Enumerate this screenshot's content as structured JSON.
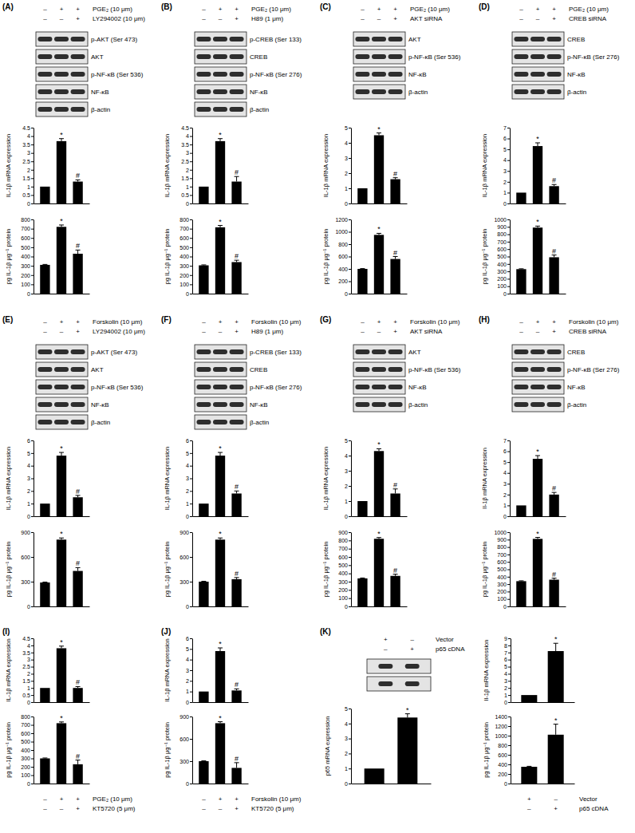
{
  "panels": [
    {
      "label": "(A)",
      "treatment_tables": [
        [
          {
            "label": "PGE₂ (10 μm)",
            "signs": [
              "–",
              "+",
              "+"
            ]
          },
          {
            "label": "LY294002 (10 μm)",
            "signs": [
              "–",
              "–",
              "+"
            ]
          }
        ]
      ],
      "blots": [
        "p-AKT (Ser 473)",
        "AKT",
        "p-NF-κB (Ser 536)",
        "NF-κB",
        "β-actin"
      ]
    },
    {
      "label": "(B)",
      "treatment_tables": [
        [
          {
            "label": "PGE₂ (10 μm)",
            "signs": [
              "–",
              "+",
              "+"
            ]
          },
          {
            "label": "H89 (1 μm)",
            "signs": [
              "–",
              "–",
              "+"
            ]
          }
        ]
      ],
      "blots": [
        "p-CREB (Ser 133)",
        "CREB",
        "p-NF-κB (Ser 276)",
        "NF-κB",
        "β-actin"
      ]
    },
    {
      "label": "(C)",
      "treatment_tables": [
        [
          {
            "label": "PGE₂ (10 μm)",
            "signs": [
              "–",
              "+",
              "+"
            ]
          },
          {
            "label": "AKT siRNA",
            "signs": [
              "–",
              "–",
              "+"
            ]
          }
        ]
      ],
      "blots": [
        "AKT",
        "p-NF-κB (Ser 536)",
        "NF-κB",
        "β-actin"
      ]
    },
    {
      "label": "(D)",
      "treatment_tables": [
        [
          {
            "label": "PGE₂ (10 μm)",
            "signs": [
              "–",
              "+",
              "+"
            ]
          },
          {
            "label": "CREB siRNA",
            "signs": [
              "–",
              "–",
              "+"
            ]
          }
        ]
      ],
      "blots": [
        "CREB",
        "p-NF-κB (Ser 276)",
        "NF-κB",
        "β-actin"
      ]
    },
    {
      "label": "(E)",
      "treatment_tables": [
        [
          {
            "label": "Forskolin (10 μm)",
            "signs": [
              "–",
              "+",
              "+"
            ]
          },
          {
            "label": "LY294002 (10 μm)",
            "signs": [
              "–",
              "–",
              "+"
            ]
          }
        ]
      ],
      "blots": [
        "p-AKT (Ser 473)",
        "AKT",
        "p-NF-κB (Ser 536)",
        "NF-κB",
        "β-actin"
      ]
    },
    {
      "label": "(F)",
      "treatment_tables": [
        [
          {
            "label": "Forskolin (10 μm)",
            "signs": [
              "–",
              "+",
              "+"
            ]
          },
          {
            "label": "H89 (1 μm)",
            "signs": [
              "–",
              "–",
              "+"
            ]
          }
        ]
      ],
      "blots": [
        "p-CREB (Ser 133)",
        "CREB",
        "p-NF-κB (Ser 276)",
        "NF-κB",
        "β-actin"
      ]
    },
    {
      "label": "(G)",
      "treatment_tables": [
        [
          {
            "label": "Forskolin (10 μm)",
            "signs": [
              "–",
              "+",
              "+"
            ]
          },
          {
            "label": "AKT siRNA",
            "signs": [
              "–",
              "–",
              "+"
            ]
          }
        ]
      ],
      "blots": [
        "AKT",
        "p-NF-κB (Ser 536)",
        "NF-κB",
        "β-actin"
      ]
    },
    {
      "label": "(H)",
      "treatment_tables": [
        [
          {
            "label": "Forskolin (10 μm)",
            "signs": [
              "–",
              "+",
              "+"
            ]
          },
          {
            "label": "CREB siRNA",
            "signs": [
              "–",
              "–",
              "+"
            ]
          }
        ]
      ],
      "blots": [
        "CREB",
        "p-NF-κB (Ser 276)",
        "NF-κB",
        "β-actin"
      ]
    },
    {
      "label": "(I)",
      "treatment_tables": [
        [
          {
            "label": "PGE₂ (10 μm)",
            "signs": [
              "–",
              "+",
              "+"
            ]
          },
          {
            "label": "KT5720 (5 μm)",
            "signs": [
              "–",
              "–",
              "+"
            ]
          }
        ]
      ],
      "blots": []
    },
    {
      "label": "(J)",
      "treatment_tables": [
        [
          {
            "label": "Forskolin (10 μm)",
            "signs": [
              "–",
              "+",
              "+"
            ]
          },
          {
            "label": "KT5720 (5 μm)",
            "signs": [
              "–",
              "–",
              "+"
            ]
          }
        ]
      ],
      "blots": []
    },
    {
      "label": "(K)",
      "treatment_tables": [
        [
          {
            "label": "Vector",
            "signs": [
              "+",
              "–"
            ]
          },
          {
            "label": "p65 cDNA",
            "signs": [
              "–",
              "+"
            ]
          }
        ],
        [
          {
            "label": "Vector",
            "signs": [
              "+",
              "–"
            ]
          },
          {
            "label": "p65 cDNA",
            "signs": [
              "–",
              "+"
            ]
          }
        ]
      ],
      "blots": [
        null,
        null
      ]
    }
  ],
  "chart_data": [
    {
      "type": "bar",
      "y_label": "IL-1β mRNA expression",
      "categories": [
        null,
        null,
        null
      ],
      "values": [
        1,
        3.7,
        1.3
      ],
      "errors": [
        0,
        0.15,
        0.1
      ],
      "annotations": [
        null,
        "*",
        "#"
      ],
      "color": "#000000",
      "ylim": [
        0,
        4.5
      ],
      "yticks": [
        0,
        0.5,
        1,
        1.5,
        2,
        2.5,
        3,
        3.5,
        4,
        4.5
      ]
    },
    {
      "type": "bar",
      "y_label": "pg IL-1β μg⁻¹ protein",
      "categories": [
        null,
        null,
        null
      ],
      "values": [
        310,
        720,
        430
      ],
      "errors": [
        5,
        20,
        40
      ],
      "annotations": [
        null,
        "*",
        "#"
      ],
      "color": "#000000",
      "ylim": [
        0,
        800
      ],
      "yticks": [
        0,
        100,
        200,
        300,
        400,
        500,
        600,
        700,
        800
      ]
    },
    {
      "type": "bar",
      "y_label": "IL-1β mRNA expression",
      "categories": [
        null,
        null,
        null
      ],
      "values": [
        1,
        3.7,
        1.3
      ],
      "errors": [
        0,
        0.15,
        0.3
      ],
      "annotations": [
        null,
        "*",
        "#"
      ],
      "color": "#000000",
      "ylim": [
        0,
        4.5
      ],
      "yticks": [
        0,
        0.5,
        1,
        1.5,
        2,
        2.5,
        3,
        3.5,
        4,
        4.5
      ]
    },
    {
      "type": "bar",
      "y_label": "pg IL-1β μg⁻¹ protein",
      "categories": [
        null,
        null,
        null
      ],
      "values": [
        305,
        715,
        340
      ],
      "errors": [
        5,
        20,
        20
      ],
      "annotations": [
        null,
        "*",
        "#"
      ],
      "color": "#000000",
      "ylim": [
        0,
        800
      ],
      "yticks": [
        0,
        100,
        200,
        300,
        400,
        500,
        600,
        700,
        800
      ]
    },
    {
      "type": "bar",
      "y_label": "IL-1β mRNA expression",
      "categories": [
        null,
        null,
        null
      ],
      "values": [
        1,
        4.5,
        1.6
      ],
      "errors": [
        0,
        0.15,
        0.1
      ],
      "annotations": [
        null,
        "*",
        "#"
      ],
      "color": "#000000",
      "ylim": [
        0,
        5
      ],
      "yticks": [
        0,
        1,
        2,
        3,
        4,
        5
      ]
    },
    {
      "type": "bar",
      "y_label": "pg IL-1β μg⁻¹ protein",
      "categories": [
        null,
        null,
        null
      ],
      "values": [
        400,
        950,
        560
      ],
      "errors": [
        5,
        25,
        40
      ],
      "annotations": [
        null,
        "*",
        "#"
      ],
      "color": "#000000",
      "ylim": [
        0,
        1200
      ],
      "yticks": [
        0,
        200,
        400,
        600,
        800,
        1000,
        1200
      ]
    },
    {
      "type": "bar",
      "y_label": "IL-1β mRNA expression",
      "categories": [
        null,
        null,
        null
      ],
      "values": [
        1,
        5.3,
        1.6
      ],
      "errors": [
        0,
        0.3,
        0.15
      ],
      "annotations": [
        null,
        "*",
        "#"
      ],
      "color": "#000000",
      "ylim": [
        0,
        7
      ],
      "yticks": [
        0,
        1,
        2,
        3,
        4,
        5,
        6,
        7
      ]
    },
    {
      "type": "bar",
      "y_label": "pg IL-1β μg⁻¹ protein",
      "categories": [
        null,
        null,
        null
      ],
      "values": [
        330,
        890,
        490
      ],
      "errors": [
        5,
        20,
        30
      ],
      "annotations": [
        null,
        "*",
        "#"
      ],
      "color": "#000000",
      "ylim": [
        0,
        1000
      ],
      "yticks": [
        0,
        100,
        200,
        300,
        400,
        500,
        600,
        700,
        800,
        900,
        1000
      ]
    },
    {
      "type": "bar",
      "y_label": "IL-1β mRNA expression",
      "categories": [
        null,
        null,
        null
      ],
      "values": [
        1,
        4.8,
        1.5
      ],
      "errors": [
        0,
        0.25,
        0.15
      ],
      "annotations": [
        null,
        "*",
        "#"
      ],
      "color": "#000000",
      "ylim": [
        0,
        6
      ],
      "yticks": [
        0,
        1,
        2,
        3,
        4,
        5,
        6
      ]
    },
    {
      "type": "bar",
      "y_label": "pg IL-1β μg⁻¹ protein",
      "categories": [
        null,
        null,
        null
      ],
      "values": [
        290,
        810,
        430
      ],
      "errors": [
        5,
        20,
        40
      ],
      "annotations": [
        null,
        "*",
        "#"
      ],
      "color": "#000000",
      "ylim": [
        0,
        900
      ],
      "yticks": [
        0,
        300,
        600,
        900
      ]
    },
    {
      "type": "bar",
      "y_label": "IL-1β mRNA expression",
      "categories": [
        null,
        null,
        null
      ],
      "values": [
        1,
        4.8,
        1.8
      ],
      "errors": [
        0,
        0.25,
        0.2
      ],
      "annotations": [
        null,
        "*",
        "#"
      ],
      "color": "#000000",
      "ylim": [
        0,
        6
      ],
      "yticks": [
        0,
        1,
        2,
        3,
        4,
        5,
        6
      ]
    },
    {
      "type": "bar",
      "y_label": "pg IL-1β μg⁻¹ protein",
      "categories": [
        null,
        null,
        null
      ],
      "values": [
        300,
        810,
        330
      ],
      "errors": [
        5,
        20,
        20
      ],
      "annotations": [
        null,
        "*",
        "#"
      ],
      "color": "#000000",
      "ylim": [
        0,
        900
      ],
      "yticks": [
        0,
        300,
        600,
        900
      ]
    },
    {
      "type": "bar",
      "y_label": "IL-1β mRNA expression",
      "categories": [
        null,
        null,
        null
      ],
      "values": [
        1,
        4.3,
        1.5
      ],
      "errors": [
        0,
        0.15,
        0.3
      ],
      "annotations": [
        null,
        "*",
        "#"
      ],
      "color": "#000000",
      "ylim": [
        0,
        5
      ],
      "yticks": [
        0,
        1,
        2,
        3,
        4,
        5
      ]
    },
    {
      "type": "bar",
      "y_label": "pg IL-1β μg⁻¹ protein",
      "categories": [
        null,
        null,
        null
      ],
      "values": [
        340,
        820,
        370
      ],
      "errors": [
        5,
        15,
        20
      ],
      "annotations": [
        null,
        "*",
        "#"
      ],
      "color": "#000000",
      "ylim": [
        0,
        900
      ],
      "yticks": [
        0,
        100,
        200,
        300,
        400,
        500,
        600,
        700,
        800,
        900
      ]
    },
    {
      "type": "bar",
      "y_label": "Il-1β mRNA expression",
      "categories": [
        null,
        null,
        null
      ],
      "values": [
        1,
        5.3,
        2.0
      ],
      "errors": [
        0,
        0.3,
        0.2
      ],
      "annotations": [
        null,
        "*",
        "#"
      ],
      "color": "#000000",
      "ylim": [
        0,
        7
      ],
      "yticks": [
        0,
        1,
        2,
        3,
        4,
        5,
        6,
        7
      ]
    },
    {
      "type": "bar",
      "y_label": "pg IL-1β μg⁻¹ protein",
      "categories": [
        null,
        null,
        null
      ],
      "values": [
        340,
        910,
        360
      ],
      "errors": [
        5,
        20,
        20
      ],
      "annotations": [
        null,
        "*",
        "#"
      ],
      "color": "#000000",
      "ylim": [
        0,
        1000
      ],
      "yticks": [
        0,
        100,
        200,
        300,
        400,
        500,
        600,
        700,
        800,
        900,
        1000
      ]
    },
    {
      "type": "bar",
      "y_label": "IL-1β mRNA expression",
      "categories": [
        null,
        null,
        null
      ],
      "values": [
        1,
        3.8,
        1.0
      ],
      "errors": [
        0,
        0.15,
        0.1
      ],
      "annotations": [
        null,
        "*",
        "#"
      ],
      "color": "#000000",
      "ylim": [
        0,
        4.5
      ],
      "yticks": [
        0,
        0.5,
        1,
        1.5,
        2,
        2.5,
        3,
        3.5,
        4,
        4.5
      ]
    },
    {
      "type": "bar",
      "y_label": "pg IL-1β μg⁻¹ protein",
      "categories": [
        null,
        null,
        null
      ],
      "values": [
        300,
        720,
        230
      ],
      "errors": [
        5,
        15,
        50
      ],
      "annotations": [
        null,
        "*",
        "#"
      ],
      "color": "#000000",
      "ylim": [
        0,
        800
      ],
      "yticks": [
        0,
        100,
        200,
        300,
        400,
        500,
        600,
        700,
        800
      ]
    },
    {
      "type": "bar",
      "y_label": "IL-1β mRNA expression",
      "categories": [
        null,
        null,
        null
      ],
      "values": [
        1,
        4.8,
        1.1
      ],
      "errors": [
        0,
        0.3,
        0.15
      ],
      "annotations": [
        null,
        "*",
        "#"
      ],
      "color": "#000000",
      "ylim": [
        0,
        6
      ],
      "yticks": [
        0,
        1,
        2,
        3,
        4,
        5,
        6
      ]
    },
    {
      "type": "bar",
      "y_label": "pg IL-1β μg⁻¹ protein",
      "categories": [
        null,
        null,
        null
      ],
      "values": [
        300,
        810,
        210
      ],
      "errors": [
        5,
        20,
        70
      ],
      "annotations": [
        null,
        "*",
        "#"
      ],
      "color": "#000000",
      "ylim": [
        0,
        900
      ],
      "yticks": [
        0,
        300,
        600,
        900
      ]
    },
    {
      "type": "bar",
      "y_label": "p65 mRNA expression",
      "categories": [
        null,
        null
      ],
      "values": [
        1,
        4.4
      ],
      "errors": [
        0,
        0.25
      ],
      "annotations": [
        null,
        "*"
      ],
      "color": "#000000",
      "ylim": [
        0,
        5
      ],
      "yticks": [
        0,
        1,
        2,
        3,
        4,
        5
      ]
    },
    {
      "type": "bar",
      "y_label": "Il-1β mRNA expression",
      "categories": [
        null,
        null
      ],
      "values": [
        1,
        7.2
      ],
      "errors": [
        0,
        1.1
      ],
      "annotations": [
        null,
        "*"
      ],
      "color": "#000000",
      "ylim": [
        0,
        9
      ],
      "yticks": [
        0,
        1,
        2,
        3,
        4,
        5,
        6,
        7,
        8,
        9
      ]
    },
    {
      "type": "bar",
      "y_label": "pg IL-1β μg⁻¹ protein",
      "categories": [
        null,
        null
      ],
      "values": [
        350,
        1020
      ],
      "errors": [
        10,
        220
      ],
      "annotations": [
        null,
        "*"
      ],
      "color": "#000000",
      "ylim": [
        0,
        1400
      ],
      "yticks": [
        0,
        200,
        400,
        600,
        800,
        1000,
        1200,
        1400
      ]
    }
  ]
}
